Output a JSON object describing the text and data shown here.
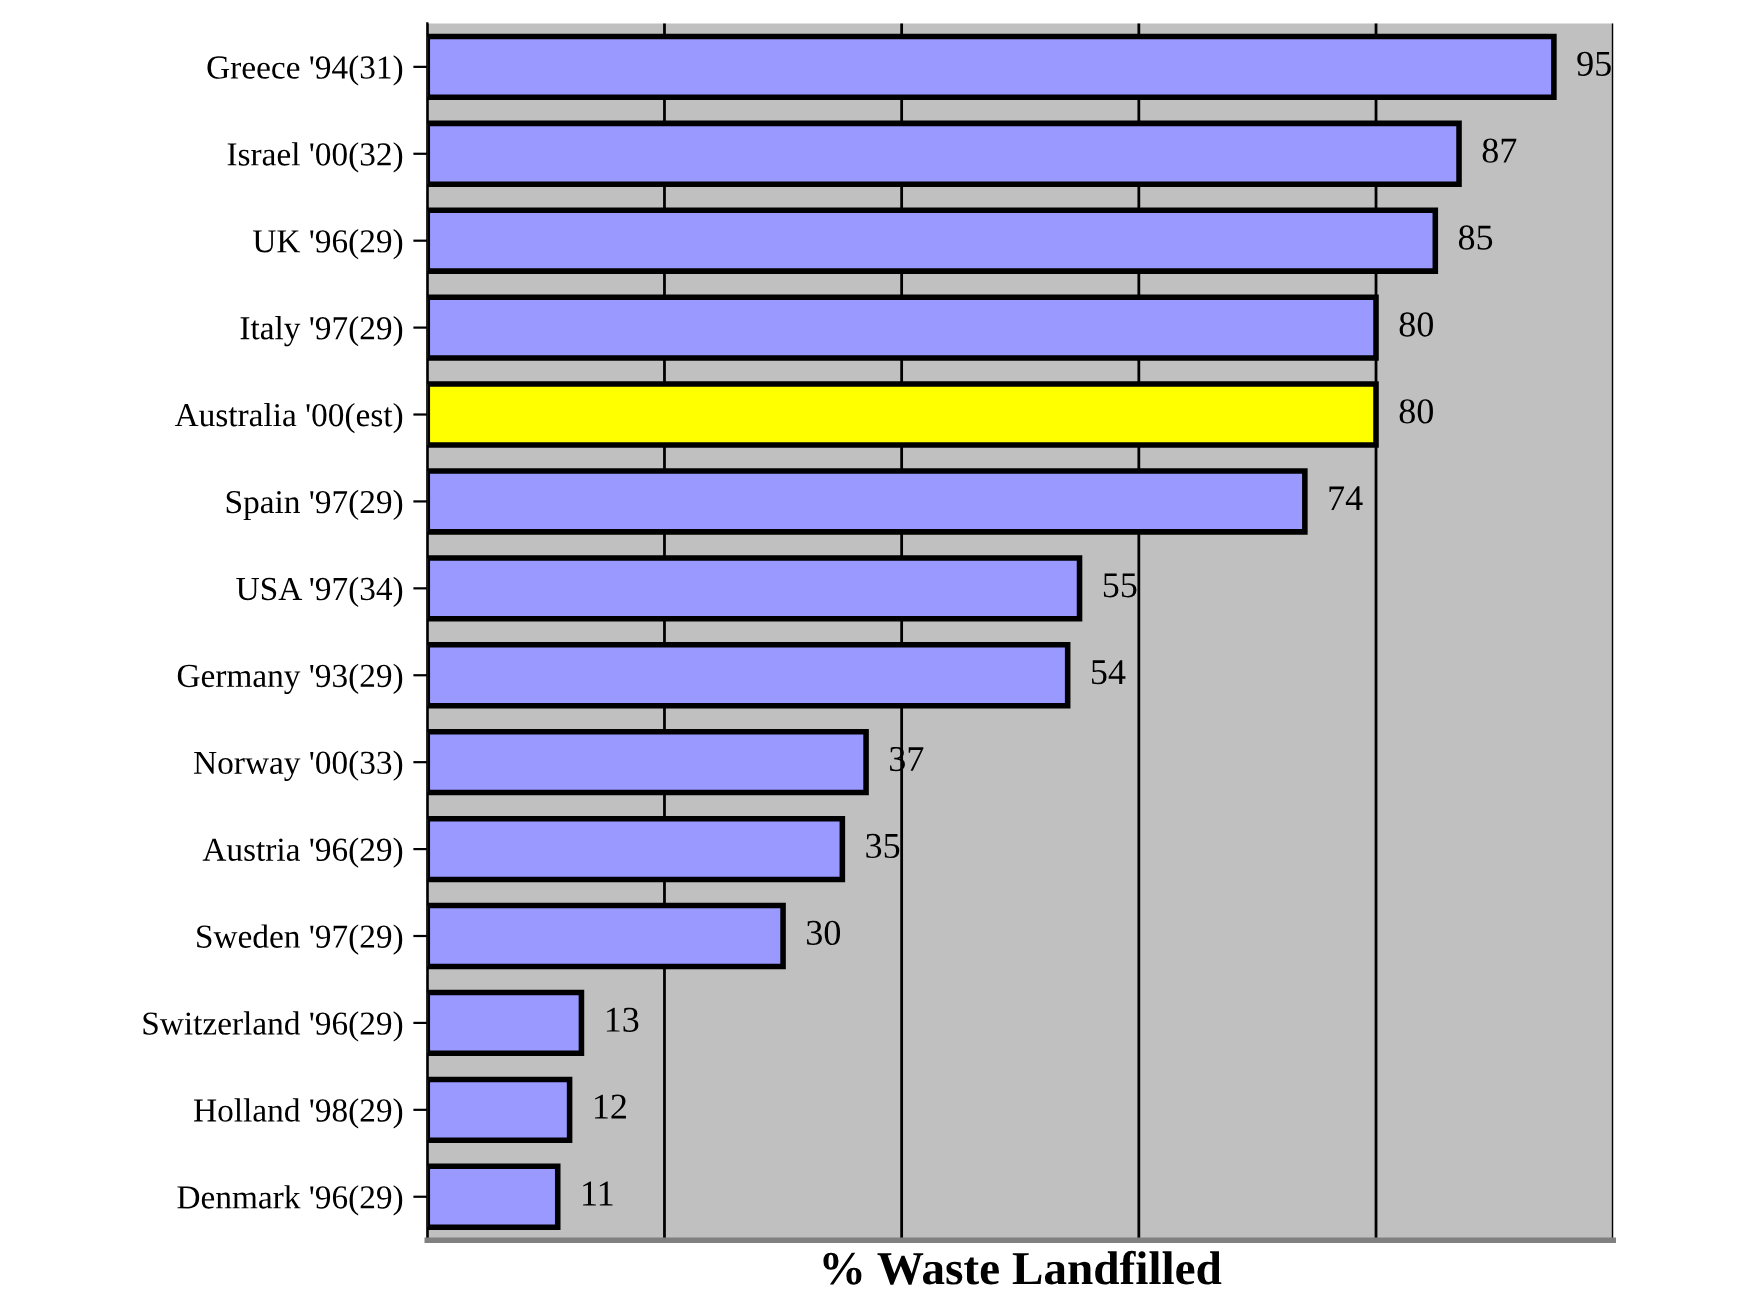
{
  "chart_data": {
    "type": "bar",
    "orientation": "horizontal",
    "xlabel": "% Waste Landfilled",
    "categories": [
      "Greece '94(31)",
      "Israel '00(32)",
      "UK '96(29)",
      "Italy '97(29)",
      "Australia '00(est)",
      "Spain '97(29)",
      "USA '97(34)",
      "Germany '93(29)",
      "Norway '00(33)",
      "Austria '96(29)",
      "Sweden '97(29)",
      "Switzerland '96(29)",
      "Holland '98(29)",
      "Denmark '96(29)"
    ],
    "values": [
      95,
      87,
      85,
      80,
      80,
      74,
      55,
      54,
      37,
      35,
      30,
      13,
      12,
      11
    ],
    "colors": [
      "#9999ff",
      "#9999ff",
      "#9999ff",
      "#9999ff",
      "#ffff00",
      "#9999ff",
      "#9999ff",
      "#9999ff",
      "#9999ff",
      "#9999ff",
      "#9999ff",
      "#9999ff",
      "#9999ff",
      "#9999ff"
    ],
    "xlim": [
      0,
      100
    ],
    "xticks": [
      {
        "value": 0,
        "label": null
      },
      {
        "value": 20,
        "label": null
      },
      {
        "value": 40,
        "label": null
      },
      {
        "value": 60,
        "label": null
      },
      {
        "value": 80,
        "label": null
      },
      {
        "value": 100,
        "label": null
      }
    ],
    "grid": "x",
    "tick_labels": "y",
    "data_labels": true
  }
}
